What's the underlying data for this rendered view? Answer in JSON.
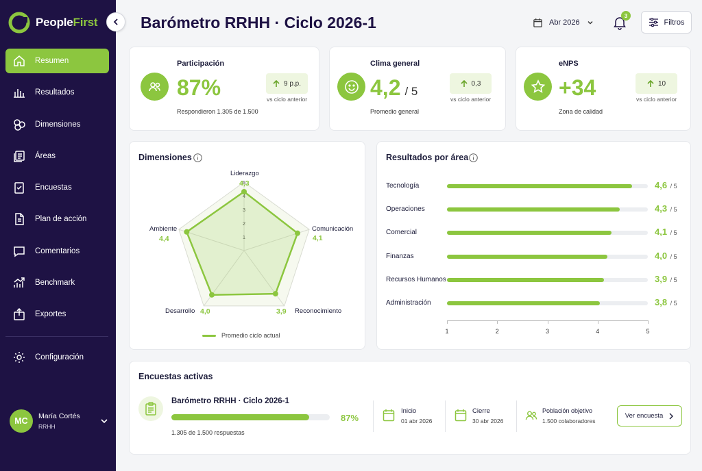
{
  "brand": {
    "name_part1": "People",
    "name_part2": "First"
  },
  "nav": {
    "items": [
      {
        "label": "Resumen",
        "icon": "home-icon",
        "active": true
      },
      {
        "label": "Resultados",
        "icon": "bar-chart-icon"
      },
      {
        "label": "Dimensiones",
        "icon": "dimensions-icon"
      },
      {
        "label": "Áreas",
        "icon": "areas-icon"
      },
      {
        "label": "Encuestas",
        "icon": "checklist-icon"
      },
      {
        "label": "Plan de acción",
        "icon": "document-icon"
      },
      {
        "label": "Comentarios",
        "icon": "comment-icon"
      },
      {
        "label": "Benchmark",
        "icon": "trend-icon"
      },
      {
        "label": "Exportes",
        "icon": "export-icon"
      }
    ],
    "config_label": "Configuración"
  },
  "user": {
    "initials": "MC",
    "name": "María Cortés",
    "role": "RRHH"
  },
  "header": {
    "title": "Barómetro RRHH · Ciclo 2026-1",
    "date": "Abr 2026",
    "notifications": "3",
    "filters_label": "Filtros"
  },
  "kpis": [
    {
      "title": "Participación",
      "value": "87%",
      "suffix": "",
      "sub": "Respondieron 1.305 de 1.500",
      "delta": "9 p.p.",
      "vs": "vs ciclo anterior",
      "icon": "people-icon"
    },
    {
      "title": "Clima general",
      "value": "4,2",
      "suffix": "/ 5",
      "sub": "Promedio general",
      "delta": "0,3",
      "vs": "vs ciclo anterior",
      "icon": "smile-icon"
    },
    {
      "title": "eNPS",
      "value": "+34",
      "suffix": "",
      "sub": "Zona de calidad",
      "delta": "10",
      "vs": "vs ciclo anterior",
      "icon": "star-icon"
    }
  ],
  "dimensions": {
    "title": "Dimensiones",
    "legend": "Promedio ciclo actual",
    "chart_data": {
      "type": "radar",
      "categories": [
        "Liderazgo",
        "Comunicación",
        "Reconocimiento",
        "Desarrollo",
        "Ambiente"
      ],
      "values": [
        4.3,
        4.1,
        3.9,
        4.0,
        4.4
      ],
      "value_labels": [
        "4,3",
        "4,1",
        "3,9",
        "4,0",
        "4,4"
      ],
      "scale_ticks": [
        "1",
        "2",
        "3",
        "4",
        "5"
      ],
      "range": [
        0,
        5
      ]
    }
  },
  "areas": {
    "title": "Resultados por área",
    "max_label": "/ 5",
    "chart_data": {
      "type": "bar",
      "categories": [
        "Tecnología",
        "Operaciones",
        "Comercial",
        "Finanzas",
        "Recursos Humanos",
        "Administración"
      ],
      "values": [
        4.6,
        4.3,
        4.1,
        4.0,
        3.9,
        3.8
      ],
      "value_labels": [
        "4,6",
        "4,3",
        "4,1",
        "4,0",
        "3,9",
        "3,8"
      ],
      "x_ticks": [
        "1",
        "2",
        "3",
        "4",
        "5"
      ],
      "xlim": [
        1,
        5
      ]
    }
  },
  "surveys": {
    "title": "Encuestas activas",
    "item": {
      "name": "Barómetro RRHH · Ciclo 2026-1",
      "progress": 0.87,
      "progress_label": "87%",
      "responses": "1.305 de 1.500 respuestas",
      "start_label": "Inicio",
      "start_value": "01 abr 2026",
      "end_label": "Cierre",
      "end_value": "30 abr 2026",
      "population_label": "Población objetivo",
      "population_value": "1.500 colaboradores",
      "button": "Ver encuesta"
    }
  },
  "colors": {
    "accent": "#8cc63f",
    "sidebar": "#1e1244"
  }
}
